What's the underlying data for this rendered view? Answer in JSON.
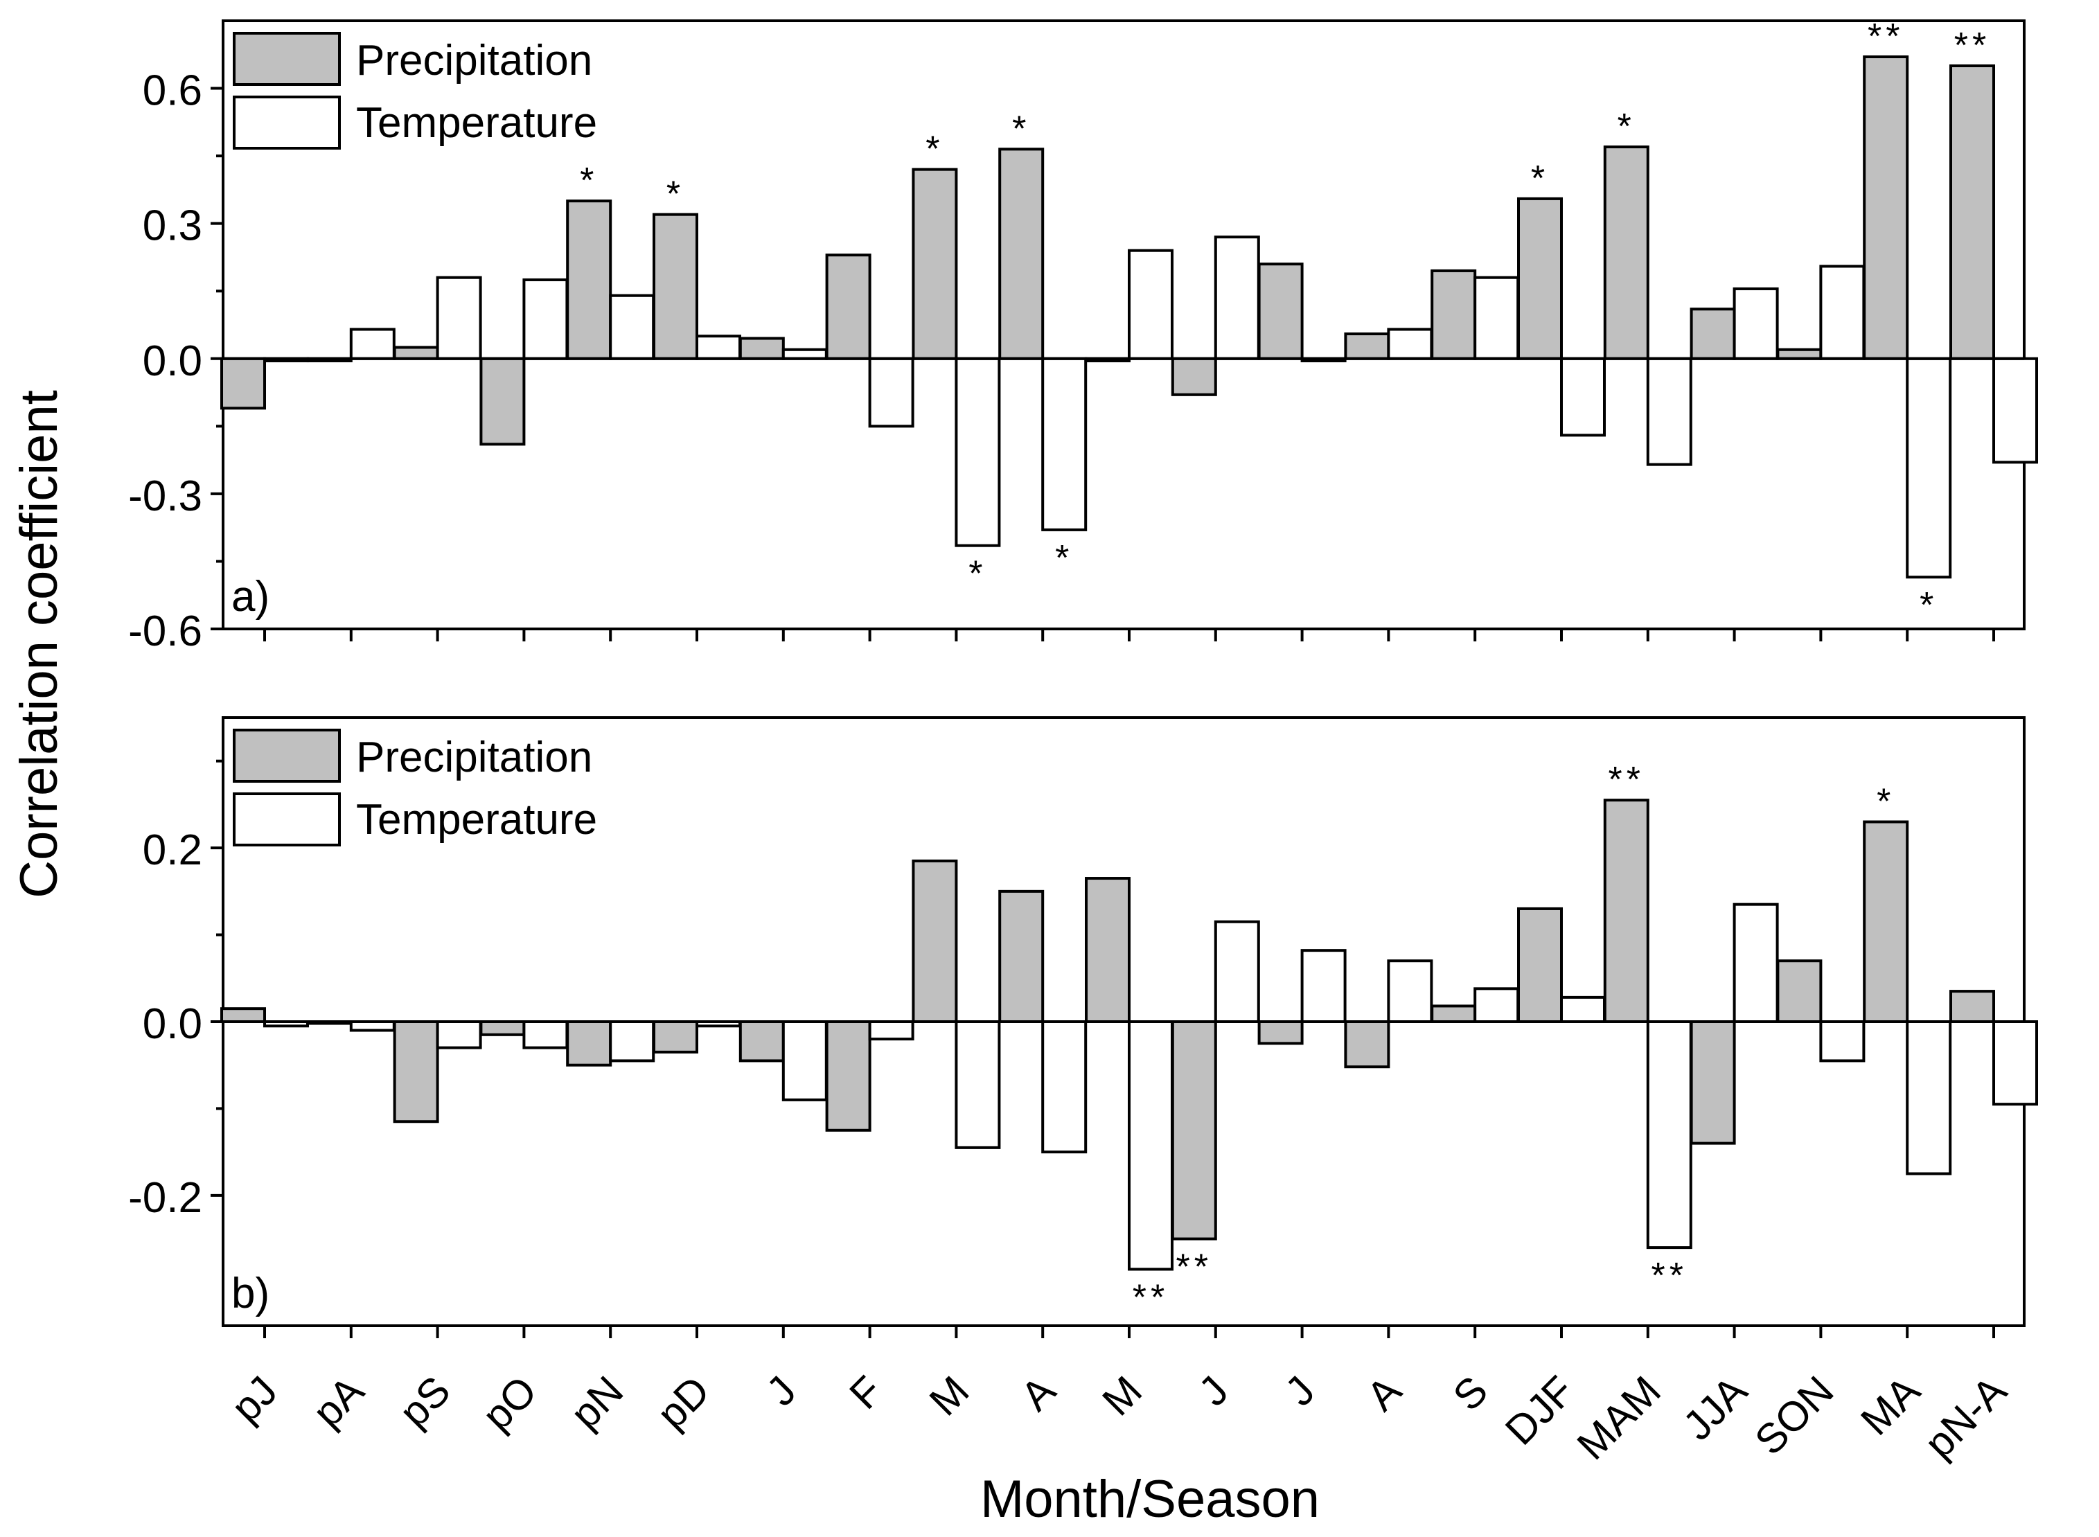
{
  "chart_data": [
    {
      "type": "bar",
      "panel_label": "a)",
      "ylim": [
        -0.6,
        0.75
      ],
      "yticks": [
        -0.6,
        -0.3,
        0.0,
        0.3,
        0.6
      ],
      "ytick_labels": [
        "-0.6",
        "-0.3",
        "0.0",
        "0.3",
        "0.6"
      ],
      "legend_position": "top-left",
      "series": [
        {
          "name": "Precipitation",
          "color": "#c0c0c0",
          "values": [
            -0.11,
            -0.005,
            0.025,
            -0.19,
            0.35,
            0.32,
            0.045,
            0.23,
            0.42,
            0.465,
            -0.005,
            -0.08,
            0.21,
            0.055,
            0.195,
            0.355,
            0.47,
            0.11,
            0.02,
            0.67,
            0.65
          ],
          "significance": [
            "",
            "",
            "",
            "",
            "*",
            "*",
            "",
            "",
            "*",
            "*",
            "",
            "",
            "",
            "",
            "",
            "*",
            "*",
            "",
            "",
            "**",
            "**"
          ]
        },
        {
          "name": "Temperature",
          "color": "#ffffff",
          "values": [
            -0.005,
            0.065,
            0.18,
            0.175,
            0.14,
            0.05,
            0.02,
            -0.15,
            -0.415,
            -0.38,
            0.24,
            0.27,
            -0.005,
            0.065,
            0.18,
            -0.17,
            -0.235,
            0.155,
            0.205,
            -0.485,
            -0.23
          ],
          "significance": [
            "",
            "",
            "",
            "",
            "",
            "",
            "",
            "",
            "*",
            "*",
            "",
            "",
            "",
            "",
            "",
            "",
            "",
            "",
            "",
            "*",
            ""
          ]
        }
      ]
    },
    {
      "type": "bar",
      "panel_label": "b)",
      "ylim": [
        -0.35,
        0.35
      ],
      "yticks": [
        -0.2,
        0.0,
        0.2
      ],
      "ytick_labels": [
        "-0.2",
        "0.0",
        "0.2"
      ],
      "legend_position": "top-left",
      "series": [
        {
          "name": "Precipitation",
          "color": "#c0c0c0",
          "values": [
            0.015,
            -0.002,
            -0.115,
            -0.015,
            -0.05,
            -0.035,
            -0.045,
            -0.125,
            0.185,
            0.15,
            0.165,
            -0.25,
            -0.025,
            -0.052,
            0.018,
            0.13,
            0.255,
            -0.14,
            0.07,
            0.23,
            0.035
          ],
          "significance": [
            "",
            "",
            "",
            "",
            "",
            "",
            "",
            "",
            "",
            "",
            "",
            "**",
            "",
            "",
            "",
            "",
            "**",
            "",
            "",
            "*",
            ""
          ]
        },
        {
          "name": "Temperature",
          "color": "#ffffff",
          "values": [
            -0.005,
            -0.01,
            -0.03,
            -0.03,
            -0.045,
            -0.005,
            -0.09,
            -0.02,
            -0.145,
            -0.15,
            -0.285,
            0.115,
            0.082,
            0.07,
            0.038,
            0.028,
            -0.26,
            0.135,
            -0.045,
            -0.175,
            -0.095
          ],
          "significance": [
            "",
            "",
            "",
            "",
            "",
            "",
            "",
            "",
            "",
            "",
            "**",
            "",
            "",
            "",
            "",
            "",
            "**",
            "",
            "",
            "",
            ""
          ]
        }
      ]
    }
  ],
  "categories": [
    "pJ",
    "pA",
    "pS",
    "pO",
    "pN",
    "pD",
    "J",
    "F",
    "M",
    "A",
    "M",
    "J",
    "J",
    "A",
    "S",
    "DJF",
    "MAM",
    "JJA",
    "SON",
    "MA",
    "pN-A"
  ],
  "xlabel": "Month/Season",
  "ylabel": "Correlation coefficient"
}
